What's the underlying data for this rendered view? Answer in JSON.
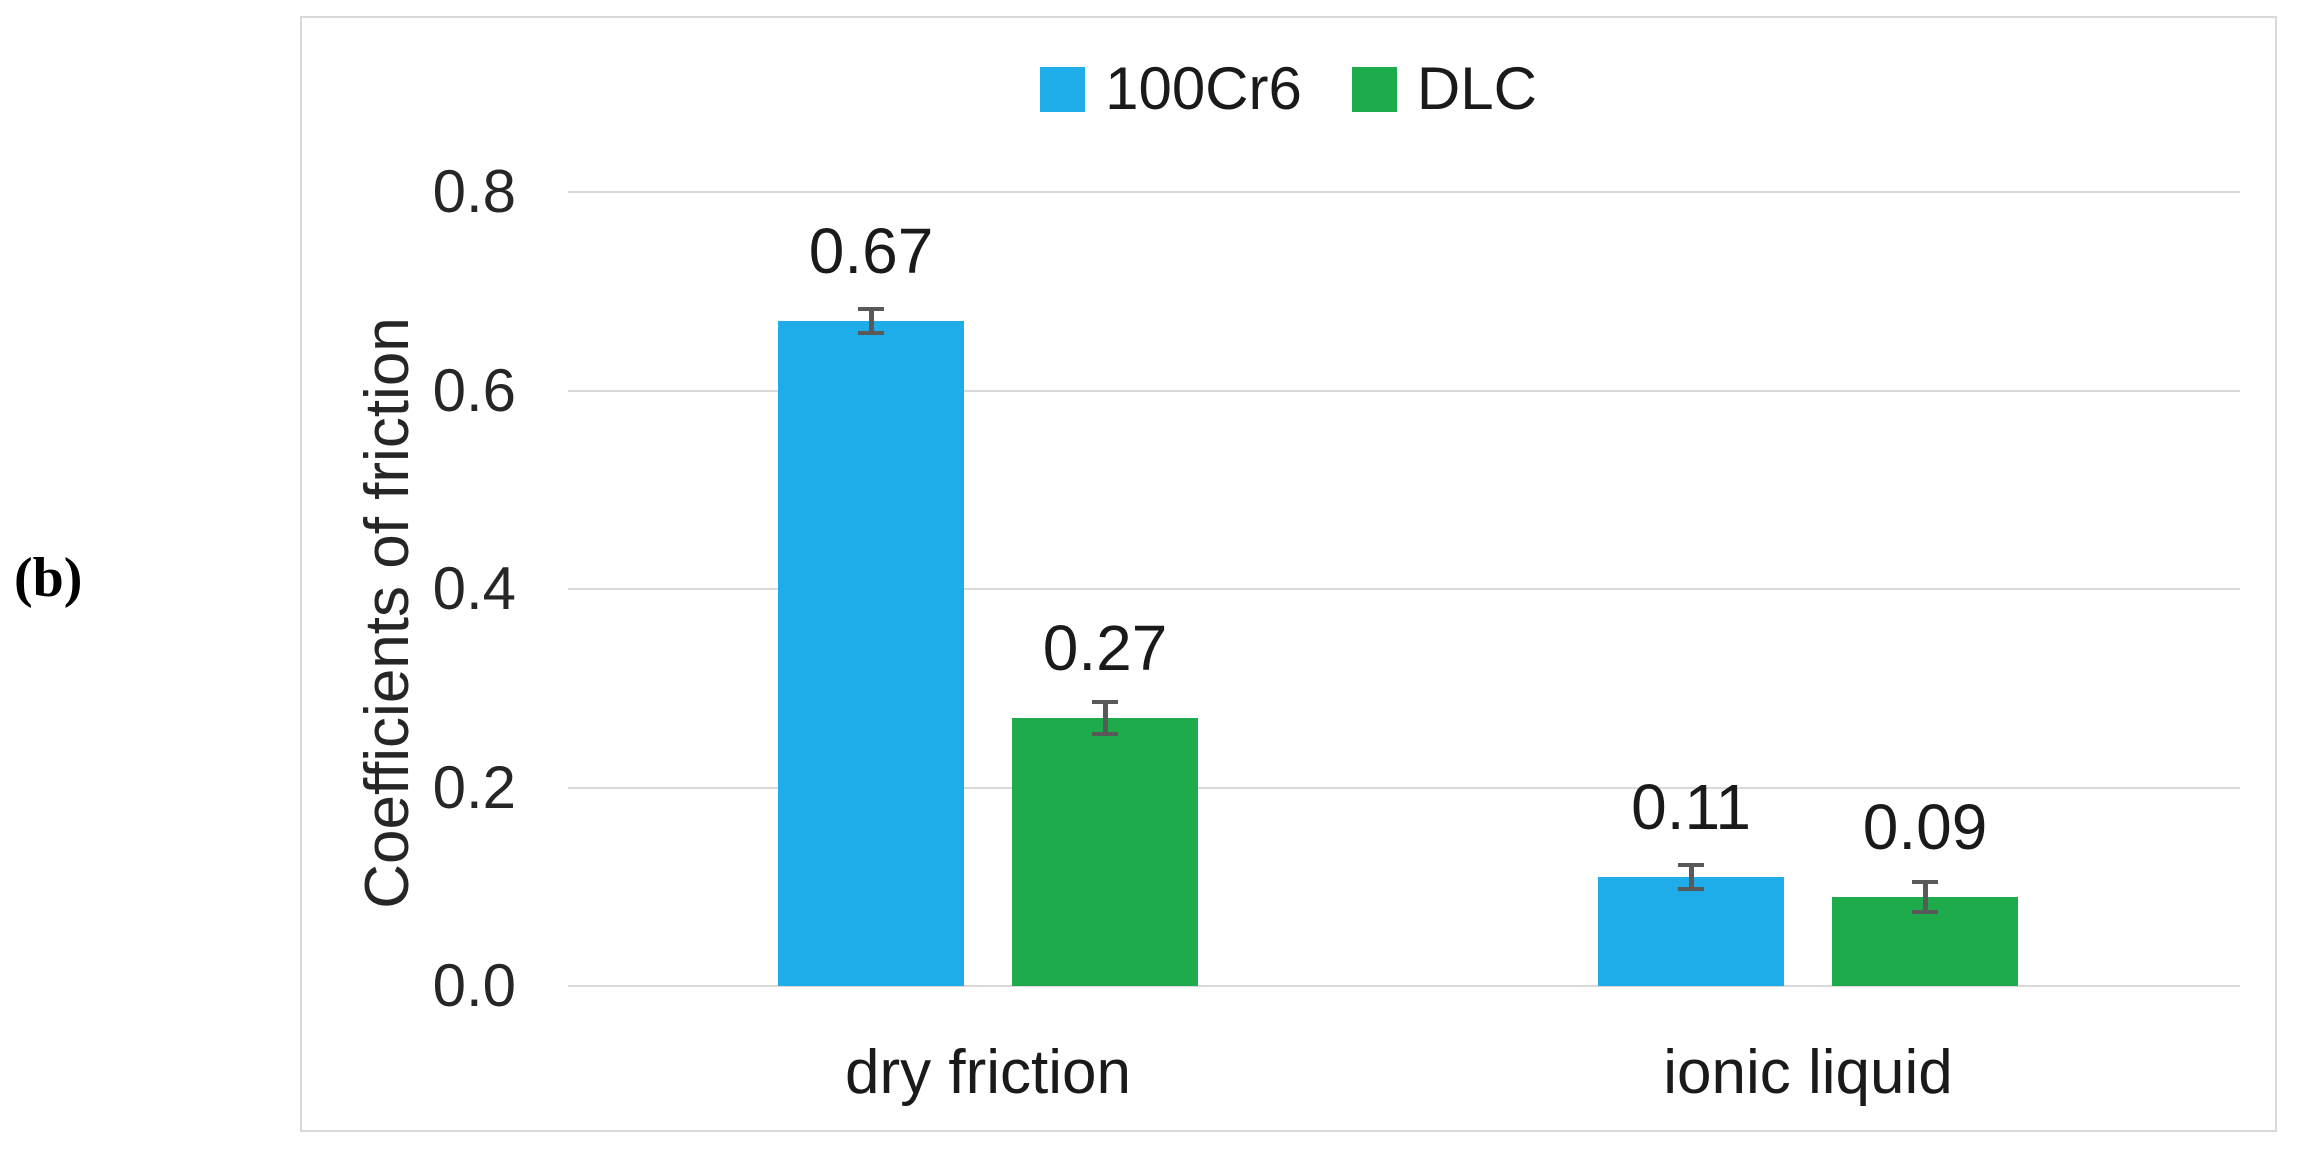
{
  "figure_label": "(b)",
  "colors": {
    "series_blue": "#1EADE9",
    "series_green": "#1EAB4B",
    "gridline": "#D9D9D9",
    "chart_border": "#D9D9D9",
    "error_bar": "#595959",
    "text": "#262626"
  },
  "chart_data": {
    "type": "bar",
    "title": "",
    "categories": [
      "dry friction",
      "ionic liquid"
    ],
    "series": [
      {
        "name": "100Cr6",
        "color": "#1EADE9",
        "values": [
          0.67,
          0.11
        ],
        "value_labels": [
          "0.67",
          "0.11"
        ],
        "errors": [
          0.012,
          0.012
        ]
      },
      {
        "name": "DLC",
        "color": "#1EAB4B",
        "values": [
          0.27,
          0.09
        ],
        "value_labels": [
          "0.27",
          "0.09"
        ],
        "errors": [
          0.016,
          0.015
        ]
      }
    ],
    "xlabel": "",
    "ylabel": "Coefficients of friction",
    "ylim": [
      0,
      0.8
    ],
    "yticks": [
      {
        "value": 0.0,
        "label": "0.0"
      },
      {
        "value": 0.2,
        "label": "0.2"
      },
      {
        "value": 0.4,
        "label": "0.4"
      },
      {
        "value": 0.6,
        "label": "0.6"
      },
      {
        "value": 0.8,
        "label": "0.8"
      }
    ],
    "grid": true,
    "legend_position": "top-center",
    "error_bars": true
  }
}
